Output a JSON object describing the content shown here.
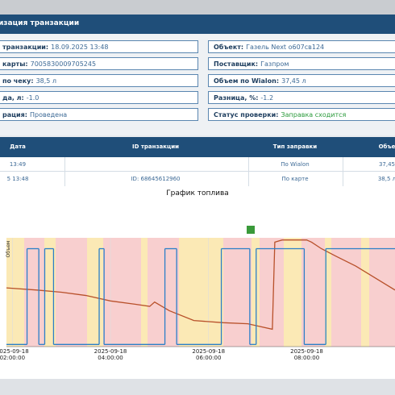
{
  "header": {
    "title": "изация транзакции"
  },
  "fields_left": [
    {
      "label": "транзакции:",
      "value": "18.09.2025 13:48"
    },
    {
      "label": "карты:",
      "value": "7005830009705245"
    },
    {
      "label": "по чеку:",
      "value": "38,5 л"
    },
    {
      "label": "да, л:",
      "value": "-1.0"
    },
    {
      "label": "рация:",
      "value": "Проведена"
    }
  ],
  "fields_right": [
    {
      "label": "Объект:",
      "value": "Газель Next о607св124"
    },
    {
      "label": "Поставщик:",
      "value": "Газпром"
    },
    {
      "label": "Объем по Wialon:",
      "value": "37,45 л"
    },
    {
      "label": "Разница, %:",
      "value": "-1.2"
    },
    {
      "label": "Статус проверки:",
      "value": "Заправка сходится"
    }
  ],
  "table": {
    "columns": [
      "Дата",
      "ID транзакции",
      "Тип заправки",
      "Объе"
    ],
    "rows": [
      {
        "date": "13:49",
        "type": "По Wialon",
        "volume": "37,45"
      },
      {
        "date": "5 13:48",
        "id": "ID: 68645612960",
        "type": "По карте",
        "volume": "38,5 л"
      }
    ]
  },
  "chart_data": {
    "type": "line",
    "title": "График топлива",
    "y_label": "Объем",
    "xlim": [
      1.88,
      9.8
    ],
    "ylim": [
      0,
      100
    ],
    "xticks": [
      {
        "value": 2,
        "label": "2025-09-18 02:00:00"
      },
      {
        "value": 4,
        "label": "2025-09-18 04:00:00"
      },
      {
        "value": 6,
        "label": "2025-09-18 06:00:00"
      },
      {
        "value": 8,
        "label": "2025-09-18 08:00:00"
      }
    ],
    "series": [
      {
        "color": "#b8502a",
        "x": [
          1.88,
          2.5,
          3.0,
          3.5,
          4.0,
          4.5,
          4.8,
          4.9,
          5.2,
          5.7,
          6.3,
          6.8,
          7.0,
          7.3,
          7.35,
          7.5,
          8.0,
          8.1,
          8.3,
          8.6,
          9.0,
          9.4,
          9.8
        ],
        "values": [
          54,
          52,
          50,
          47,
          42,
          39,
          37,
          41,
          33,
          24,
          22,
          21,
          19,
          16,
          96,
          98,
          98,
          96,
          90,
          83,
          74,
          63,
          52
        ]
      },
      {
        "color": "#2a7fc8",
        "style": "step",
        "x": [
          1.88,
          2.3,
          2.54,
          2.66,
          2.84,
          3.77,
          3.87,
          5.11,
          5.35,
          6.26,
          6.84,
          6.97,
          7.95,
          8.39,
          9.8
        ],
        "values": [
          2,
          90,
          2,
          90,
          2,
          90,
          2,
          90,
          2,
          90,
          2,
          90,
          2,
          90,
          90
        ]
      }
    ]
  }
}
